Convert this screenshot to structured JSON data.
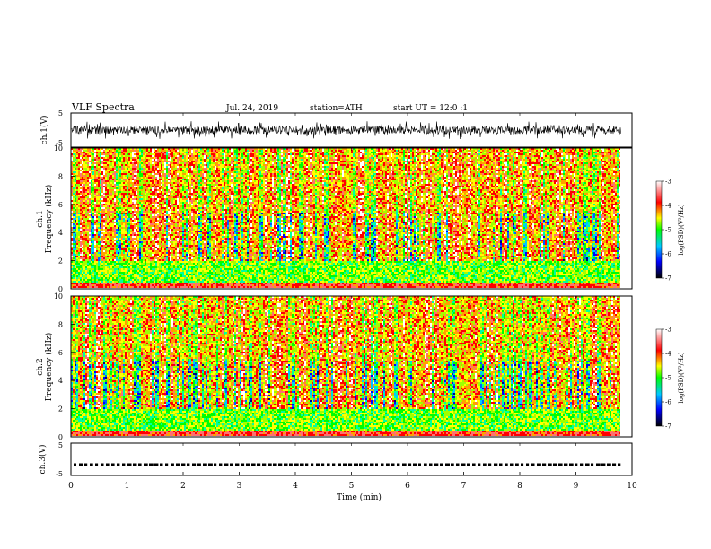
{
  "header": {
    "title": "VLF Spectra",
    "date": "Jul. 24, 2019",
    "station": "station=ATH",
    "start_ut": "start UT =  12:0 :1"
  },
  "colors": {
    "axis": "#000000",
    "colormap": [
      "#000000",
      "#0000ff",
      "#00c8ff",
      "#00ff00",
      "#ffff00",
      "#ff0000",
      "#ffffff"
    ]
  },
  "chart_data": [
    {
      "type": "line",
      "id": "ch1-waveform",
      "ylabel": "ch.1(V)",
      "ylim": [
        -5,
        5
      ],
      "yticks": [
        "5",
        "-5"
      ],
      "xlim": [
        0,
        10
      ],
      "description_values": "dense noisy waveform, amplitude roughly within -2.5 to 2.5 V, data ending near 9.8 min"
    },
    {
      "type": "heatmap",
      "id": "ch1-spectrogram",
      "ylabel": [
        "ch.1",
        "Frequency (kHz)"
      ],
      "ylim": [
        0,
        10
      ],
      "yticks": [
        "0",
        "2",
        "4",
        "6",
        "8",
        "10"
      ],
      "xlim": [
        0,
        10
      ],
      "data_end_min": 9.8,
      "colorbar": {
        "label": "log(PSD)(V²/Hz)",
        "range": [
          -7,
          -3
        ],
        "ticks": [
          "-3",
          "-4",
          "-5",
          "-6",
          "-7"
        ]
      }
    },
    {
      "type": "heatmap",
      "id": "ch2-spectrogram",
      "ylabel": [
        "ch.2",
        "Frequency (kHz)"
      ],
      "ylim": [
        0,
        10
      ],
      "yticks": [
        "0",
        "2",
        "4",
        "6",
        "8",
        "10"
      ],
      "xlim": [
        0,
        10
      ],
      "data_end_min": 9.8,
      "colorbar": {
        "label": "log(PSD)(V²/Hz)",
        "range": [
          -7,
          -3
        ],
        "ticks": [
          "-3",
          "-4",
          "-5",
          "-6",
          "-7"
        ]
      }
    },
    {
      "type": "line",
      "id": "ch3-waveform",
      "ylabel": "ch.3(V)",
      "ylim": [
        -5,
        5
      ],
      "yticks": [
        "5",
        "-5"
      ],
      "xlim": [
        0,
        10
      ],
      "xlabel": "Time (min)",
      "xticks": [
        "0",
        "1",
        "2",
        "3",
        "4",
        "5",
        "6",
        "7",
        "8",
        "9",
        "10"
      ],
      "level_v": -1.8
    }
  ]
}
